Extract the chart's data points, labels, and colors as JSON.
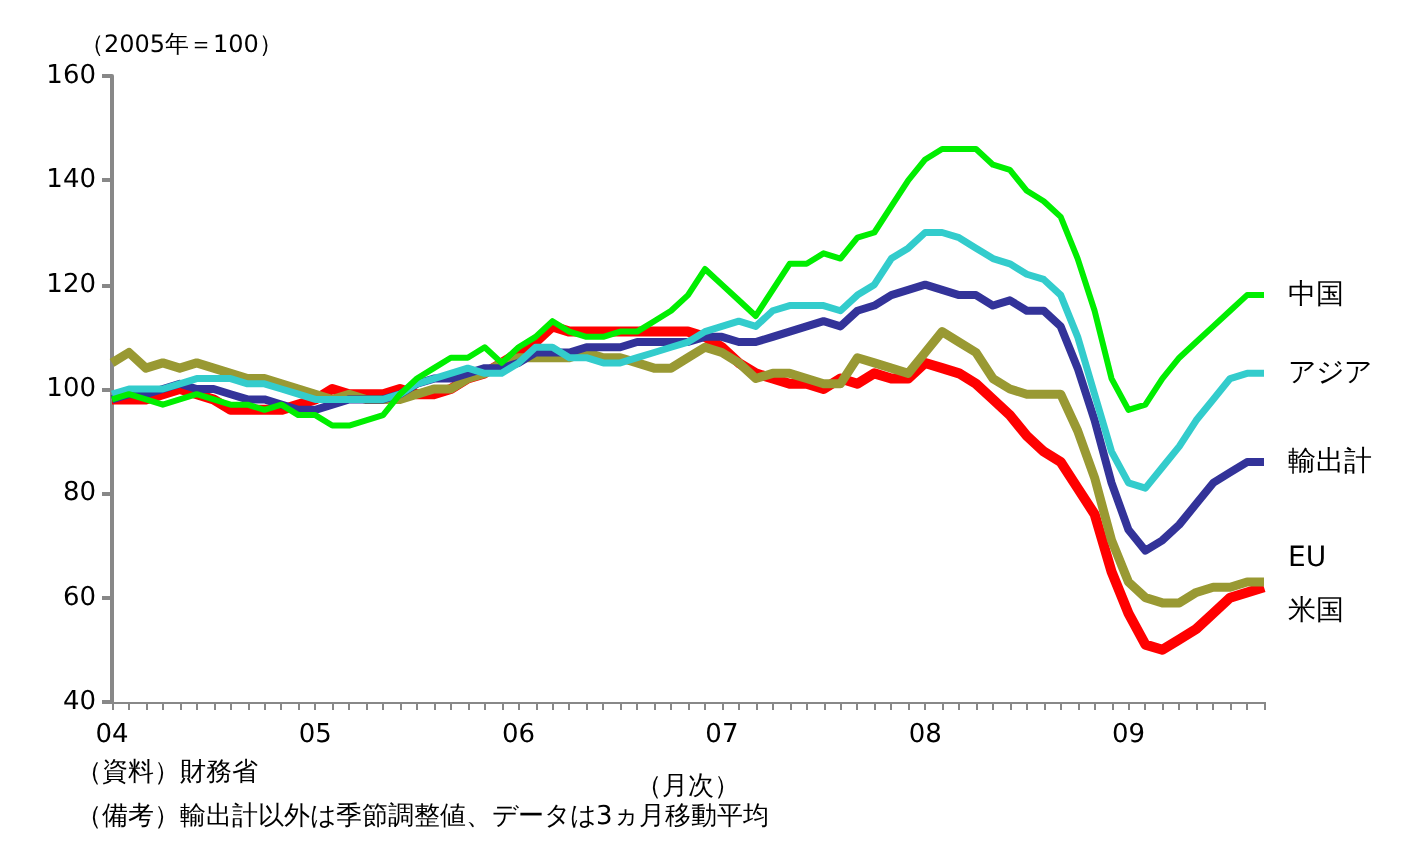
{
  "chart_data": {
    "type": "line",
    "ylabel": "（2005年＝100）",
    "xlabel": "（月次）",
    "categories": [
      "04",
      null,
      null,
      null,
      null,
      null,
      null,
      null,
      null,
      null,
      null,
      null,
      "05",
      null,
      null,
      null,
      null,
      null,
      null,
      null,
      null,
      null,
      null,
      null,
      "06",
      null,
      null,
      null,
      null,
      null,
      null,
      null,
      null,
      null,
      null,
      null,
      "07",
      null,
      null,
      null,
      null,
      null,
      null,
      null,
      null,
      null,
      null,
      null,
      "08",
      null,
      null,
      null,
      null,
      null,
      null,
      null,
      null,
      null,
      null,
      null,
      "09",
      null,
      null,
      null,
      null,
      null,
      null,
      null,
      null
    ],
    "ylim": [
      40,
      160
    ],
    "yticks": [
      40,
      60,
      80,
      100,
      120,
      140,
      160
    ],
    "grid": false,
    "legend": false,
    "marker": "none",
    "line_style": "solid",
    "series": [
      {
        "name": "中国",
        "color": "#00ee00",
        "values": [
          98,
          99,
          98,
          97,
          98,
          99,
          98,
          97,
          97,
          96,
          97,
          95,
          95,
          93,
          93,
          94,
          95,
          99,
          102,
          104,
          106,
          106,
          108,
          105,
          108,
          110,
          113,
          111,
          110,
          110,
          111,
          111,
          113,
          115,
          118,
          123,
          120,
          117,
          114,
          119,
          124,
          124,
          126,
          125,
          129,
          130,
          135,
          140,
          144,
          146,
          146,
          146,
          143,
          142,
          138,
          136,
          133,
          125,
          115,
          102,
          96,
          97,
          102,
          106,
          109,
          112,
          115,
          118,
          118
        ]
      },
      {
        "name": "アジア",
        "color": "#33cccc",
        "values": [
          99,
          100,
          100,
          100,
          101,
          102,
          102,
          102,
          101,
          101,
          100,
          99,
          98,
          98,
          98,
          98,
          98,
          99,
          101,
          102,
          103,
          104,
          103,
          103,
          105,
          108,
          108,
          106,
          106,
          105,
          105,
          106,
          107,
          108,
          109,
          111,
          112,
          113,
          112,
          115,
          116,
          116,
          116,
          115,
          118,
          120,
          125,
          127,
          130,
          130,
          129,
          127,
          125,
          124,
          122,
          121,
          118,
          110,
          99,
          88,
          82,
          81,
          85,
          89,
          94,
          98,
          102,
          103,
          103
        ]
      },
      {
        "name": "輸出計",
        "color": "#333399",
        "values": [
          98,
          99,
          99,
          100,
          101,
          100,
          100,
          99,
          98,
          98,
          97,
          96,
          96,
          97,
          98,
          98,
          98,
          99,
          101,
          102,
          102,
          103,
          104,
          104,
          105,
          107,
          107,
          107,
          108,
          108,
          108,
          109,
          109,
          109,
          109,
          110,
          110,
          109,
          109,
          110,
          111,
          112,
          113,
          112,
          115,
          116,
          118,
          119,
          120,
          119,
          118,
          118,
          116,
          117,
          115,
          115,
          112,
          104,
          94,
          82,
          73,
          69,
          71,
          74,
          78,
          82,
          84,
          86,
          86
        ]
      },
      {
        "name": "EU",
        "color": "#999933",
        "values": [
          105,
          107,
          104,
          105,
          104,
          105,
          104,
          103,
          102,
          102,
          101,
          100,
          99,
          98,
          99,
          98,
          98,
          98,
          99,
          100,
          100,
          102,
          103,
          105,
          106,
          106,
          106,
          106,
          107,
          106,
          106,
          105,
          104,
          104,
          106,
          108,
          107,
          105,
          102,
          103,
          103,
          102,
          101,
          101,
          106,
          105,
          104,
          103,
          107,
          111,
          109,
          107,
          102,
          100,
          99,
          99,
          99,
          92,
          83,
          71,
          63,
          60,
          59,
          59,
          61,
          62,
          62,
          63,
          63
        ]
      },
      {
        "name": "米国",
        "color": "#ff0000",
        "values": [
          98,
          98,
          98,
          99,
          100,
          99,
          98,
          96,
          96,
          96,
          96,
          97,
          98,
          100,
          99,
          99,
          99,
          100,
          99,
          99,
          100,
          102,
          103,
          105,
          107,
          109,
          112,
          111,
          111,
          111,
          111,
          111,
          111,
          111,
          111,
          110,
          108,
          105,
          103,
          102,
          101,
          101,
          100,
          102,
          101,
          103,
          102,
          102,
          105,
          104,
          103,
          101,
          98,
          95,
          91,
          88,
          86,
          81,
          76,
          65,
          57,
          51,
          50,
          52,
          54,
          57,
          60,
          61,
          62
        ]
      }
    ],
    "annotations": [
      "（資料）財務省",
      "（備考）輸出計以外は季節調整値、データは3ヵ月移動平均"
    ]
  }
}
